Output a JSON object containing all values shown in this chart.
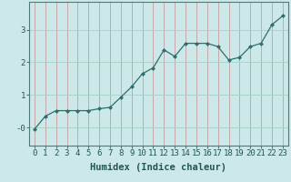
{
  "x": [
    0,
    1,
    2,
    3,
    4,
    5,
    6,
    7,
    8,
    9,
    10,
    11,
    12,
    13,
    14,
    15,
    16,
    17,
    18,
    19,
    20,
    21,
    22,
    23
  ],
  "y": [
    -0.05,
    0.35,
    0.52,
    0.52,
    0.52,
    0.52,
    0.58,
    0.62,
    0.93,
    1.25,
    1.65,
    1.83,
    2.38,
    2.18,
    2.58,
    2.58,
    2.58,
    2.48,
    2.07,
    2.15,
    2.48,
    2.58,
    3.15,
    3.42
  ],
  "line_color": "#2e6e6e",
  "marker": "D",
  "marker_size": 2.0,
  "background_color": "#cde8e8",
  "grid_h_color": "#aad4cc",
  "grid_v_color": "#c8a8a8",
  "xlabel": "Humidex (Indice chaleur)",
  "xlim": [
    -0.5,
    23.5
  ],
  "ylim": [
    -0.55,
    3.85
  ],
  "yticks": [
    0,
    1,
    2,
    3
  ],
  "ytick_labels": [
    "-0",
    "1",
    "2",
    "3"
  ],
  "xticks": [
    0,
    1,
    2,
    3,
    4,
    5,
    6,
    7,
    8,
    9,
    10,
    11,
    12,
    13,
    14,
    15,
    16,
    17,
    18,
    19,
    20,
    21,
    22,
    23
  ],
  "font_size": 6.5,
  "xlabel_fontsize": 7.5,
  "line_width": 0.9,
  "spine_color": "#557777",
  "tick_color": "#557777",
  "text_color": "#225555"
}
